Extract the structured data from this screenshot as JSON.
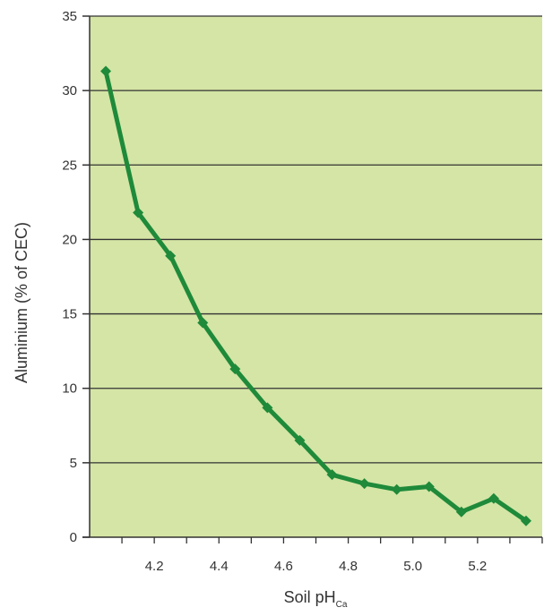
{
  "chart_data": {
    "type": "line",
    "title": "",
    "xlabel": "Soil pH",
    "xlabel_subscript": "Ca",
    "ylabel": "Aluminium (% of CEC)",
    "xlim": [
      4.0,
      5.4
    ],
    "ylim": [
      0,
      35
    ],
    "xticks": [
      4.2,
      4.4,
      4.6,
      4.8,
      5.0,
      5.2
    ],
    "xtick_labels": [
      "4.2",
      "4.4",
      "4.6",
      "4.8",
      "5.0",
      "5.2"
    ],
    "yticks": [
      0,
      5,
      10,
      15,
      20,
      25,
      30,
      35
    ],
    "ytick_labels": [
      "0",
      "5",
      "10",
      "15",
      "20",
      "25",
      "30",
      "35"
    ],
    "grid": "horizontal",
    "colors": {
      "plot_background": "#d4e5a5",
      "line": "#1e8a3a",
      "grid": "#333333",
      "axis": "#333333"
    },
    "series": [
      {
        "x": [
          4.05,
          4.15,
          4.25,
          4.35,
          4.45,
          4.55,
          4.65,
          4.75,
          4.85,
          4.95,
          5.05,
          5.15,
          5.25,
          5.35
        ],
        "y": [
          31.3,
          21.8,
          18.9,
          14.4,
          11.3,
          8.7,
          6.5,
          4.2,
          3.6,
          3.2,
          3.4,
          1.7,
          2.6,
          1.1
        ]
      }
    ]
  }
}
